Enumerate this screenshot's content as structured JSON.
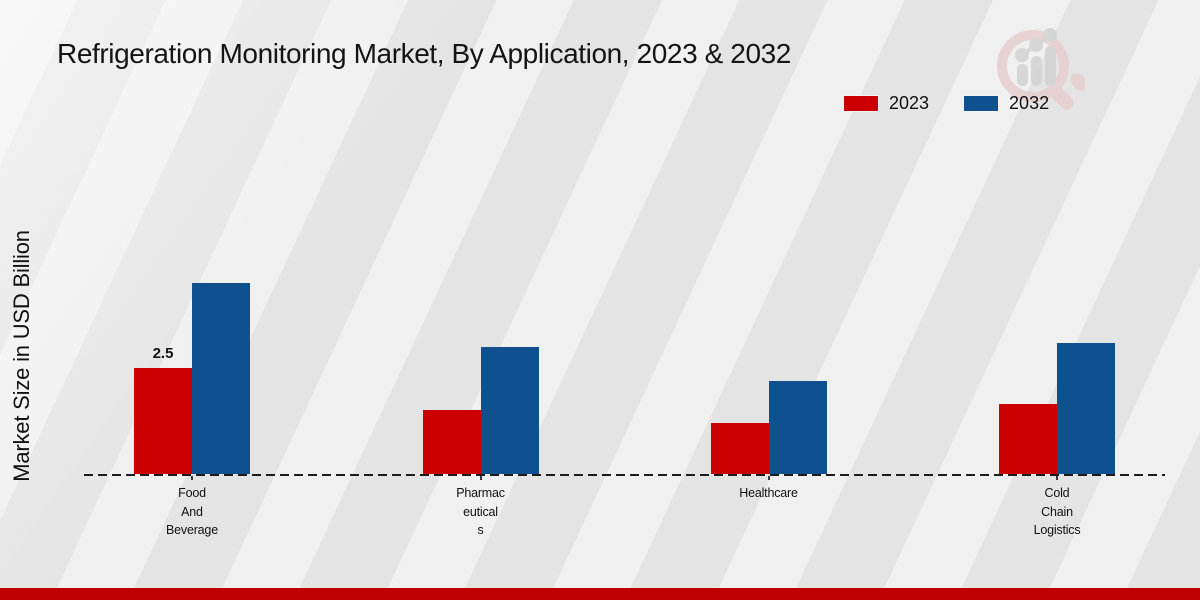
{
  "legend": {
    "items": [
      {
        "label": "2023",
        "color": "#cc0000"
      },
      {
        "label": "2032",
        "color": "#0f518f"
      }
    ]
  },
  "footer": {
    "bar_color": "#bf0101"
  },
  "icons": {
    "watermark": "magnifier-bar-chart-icon"
  },
  "chart_data": {
    "type": "bar",
    "title": "Refrigeration Monitoring Market, By Application, 2023 & 2032",
    "ylabel": "Market Size in USD Billion",
    "xlabel": "",
    "categories": [
      "Food And Beverage",
      "Pharmaceuticals",
      "Healthcare",
      "Cold Chain Logistics"
    ],
    "category_label_lines": [
      "Food\nAnd\nBeverage",
      "Pharmac\neutical\ns",
      "Healthcare",
      "Cold\nChain\nLogistics"
    ],
    "series": [
      {
        "name": "2023",
        "color": "#cc0000",
        "values": [
          2.5,
          1.5,
          1.2,
          1.65
        ]
      },
      {
        "name": "2032",
        "color": "#0f518f",
        "values": [
          4.5,
          3.0,
          2.2,
          3.1
        ]
      }
    ],
    "data_labels": [
      {
        "series_index": 0,
        "category_index": 0,
        "text": "2.5"
      }
    ],
    "ylim": [
      0,
      4.9
    ],
    "grid": false,
    "legend_position": "top-right",
    "baseline_style": "dashed",
    "value_unit": "USD Billion"
  }
}
